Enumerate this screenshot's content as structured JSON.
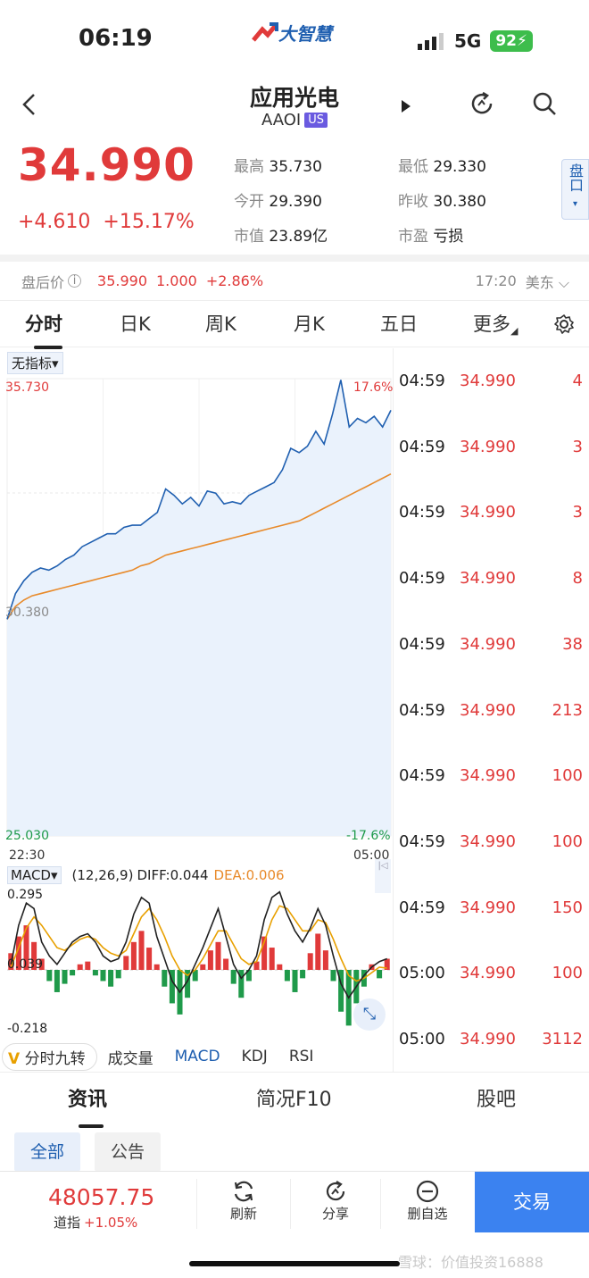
{
  "status_bar": {
    "time": "06:19",
    "app_logo": "大智慧",
    "network": "5G",
    "battery": "92"
  },
  "header": {
    "title": "应用光电",
    "ticker": "AAOI",
    "market_badge": "US"
  },
  "quote": {
    "price": "34.990",
    "change": "+4.610",
    "change_pct": "+15.17%",
    "high_label": "最高",
    "high": "35.730",
    "low_label": "最低",
    "low": "29.330",
    "open_label": "今开",
    "open": "29.390",
    "prev_close_label": "昨收",
    "prev_close": "30.380",
    "mcap_label": "市值",
    "mcap": "23.89亿",
    "pe_label": "市盈",
    "pe": "亏损",
    "side_tab": "盘口"
  },
  "after_hours": {
    "label": "盘后价",
    "price": "35.990",
    "change": "1.000",
    "change_pct": "+2.86%",
    "time": "17:20",
    "zone": "美东"
  },
  "chart_tabs": [
    "分时",
    "日K",
    "周K",
    "月K",
    "五日",
    "更多"
  ],
  "indicator_select": "无指标",
  "chart_data": {
    "type": "line",
    "x_start_label": "22:30",
    "x_end_label": "05:00",
    "y_max_label": "35.730",
    "y_mid_label": "30.380",
    "y_min_label": "25.030",
    "pct_max_label": "17.6%",
    "pct_min_label": "-17.6%",
    "ylim": [
      25.03,
      35.73
    ],
    "series": [
      {
        "name": "price",
        "color": "#1f5fb0",
        "values": [
          30.1,
          30.7,
          31.0,
          31.2,
          31.3,
          31.25,
          31.35,
          31.5,
          31.6,
          31.8,
          31.9,
          32.0,
          32.1,
          32.1,
          32.25,
          32.3,
          32.3,
          32.45,
          32.6,
          33.15,
          33.0,
          32.8,
          32.95,
          32.75,
          33.1,
          33.05,
          32.8,
          32.85,
          32.8,
          33.0,
          33.1,
          33.2,
          33.3,
          33.6,
          34.1,
          34.0,
          34.15,
          34.5,
          34.2,
          34.9,
          35.7,
          34.6,
          34.8,
          34.7,
          34.85,
          34.6,
          34.99
        ]
      },
      {
        "name": "avg",
        "color": "#e88a2a",
        "values": [
          30.1,
          30.4,
          30.55,
          30.65,
          30.7,
          30.75,
          30.8,
          30.85,
          30.9,
          30.95,
          31.0,
          31.05,
          31.1,
          31.15,
          31.2,
          31.25,
          31.35,
          31.4,
          31.5,
          31.6,
          31.65,
          31.7,
          31.75,
          31.8,
          31.85,
          31.9,
          31.95,
          32.0,
          32.05,
          32.1,
          32.15,
          32.2,
          32.25,
          32.3,
          32.35,
          32.4,
          32.5,
          32.6,
          32.7,
          32.8,
          32.9,
          33.0,
          33.1,
          33.2,
          33.3,
          33.4,
          33.5
        ]
      }
    ]
  },
  "macd": {
    "name": "MACD",
    "params": "(12,26,9)",
    "diff_label": "DIFF:0.044",
    "dea_label": "DEA:0.006",
    "y_max": "0.295",
    "y_zero": "0.039",
    "y_min": "-0.218",
    "bars": [
      0.06,
      0.12,
      0.16,
      0.1,
      0.04,
      -0.04,
      -0.08,
      -0.05,
      -0.02,
      0.02,
      0.03,
      -0.02,
      -0.04,
      -0.06,
      -0.03,
      0.05,
      0.1,
      0.14,
      0.08,
      0.02,
      -0.06,
      -0.12,
      -0.16,
      -0.1,
      -0.04,
      0.02,
      0.07,
      0.1,
      0.04,
      -0.05,
      -0.1,
      -0.04,
      0.03,
      0.12,
      0.08,
      0.02,
      -0.04,
      -0.08,
      -0.03,
      0.06,
      0.13,
      0.07,
      -0.04,
      -0.15,
      -0.2,
      -0.12,
      -0.06,
      0.02,
      -0.03,
      0.04
    ],
    "diff": [
      0.02,
      0.16,
      0.24,
      0.22,
      0.1,
      0.05,
      0.02,
      0.06,
      0.1,
      0.12,
      0.13,
      0.1,
      0.05,
      0.03,
      0.04,
      0.1,
      0.2,
      0.26,
      0.24,
      0.12,
      0.04,
      -0.04,
      -0.08,
      -0.04,
      0.02,
      0.08,
      0.15,
      0.22,
      0.12,
      0.02,
      -0.03,
      0.0,
      0.05,
      0.18,
      0.26,
      0.28,
      0.2,
      0.14,
      0.1,
      0.15,
      0.22,
      0.16,
      0.05,
      -0.05,
      -0.1,
      -0.06,
      -0.02,
      0.01,
      0.03,
      0.04
    ],
    "dea": [
      0.01,
      0.08,
      0.15,
      0.19,
      0.16,
      0.12,
      0.08,
      0.07,
      0.09,
      0.11,
      0.12,
      0.11,
      0.08,
      0.06,
      0.05,
      0.07,
      0.13,
      0.19,
      0.22,
      0.18,
      0.12,
      0.05,
      0.0,
      -0.02,
      0.0,
      0.04,
      0.09,
      0.14,
      0.14,
      0.09,
      0.04,
      0.02,
      0.03,
      0.1,
      0.18,
      0.23,
      0.22,
      0.18,
      0.14,
      0.14,
      0.18,
      0.17,
      0.11,
      0.04,
      -0.02,
      -0.04,
      -0.03,
      -0.01,
      0.01,
      0.006
    ]
  },
  "indicator_tabs": [
    "分时九转",
    "成交量",
    "MACD",
    "KDJ",
    "RSI"
  ],
  "active_indicator": "MACD",
  "trades": [
    {
      "time": "04:59",
      "price": "34.990",
      "vol": "4"
    },
    {
      "time": "04:59",
      "price": "34.990",
      "vol": "3"
    },
    {
      "time": "04:59",
      "price": "34.990",
      "vol": "3"
    },
    {
      "time": "04:59",
      "price": "34.990",
      "vol": "8"
    },
    {
      "time": "04:59",
      "price": "34.990",
      "vol": "38"
    },
    {
      "time": "04:59",
      "price": "34.990",
      "vol": "213"
    },
    {
      "time": "04:59",
      "price": "34.990",
      "vol": "100"
    },
    {
      "time": "04:59",
      "price": "34.990",
      "vol": "100"
    },
    {
      "time": "04:59",
      "price": "34.990",
      "vol": "150"
    },
    {
      "time": "05:00",
      "price": "34.990",
      "vol": "100"
    },
    {
      "time": "05:00",
      "price": "34.990",
      "vol": "3112"
    }
  ],
  "section_tabs": [
    "资讯",
    "简况F10",
    "股吧"
  ],
  "filter_tabs": [
    "全部",
    "公告"
  ],
  "bottom_bar": {
    "index_value": "48057.75",
    "index_name": "道指",
    "index_change": "+1.05%",
    "refresh": "刷新",
    "share": "分享",
    "remove_watch": "删自选",
    "trade": "交易"
  },
  "watermark": "雪球：价值投资16888",
  "colors": {
    "up": "#e03a3a",
    "down": "#1f9a4a",
    "price_line": "#1f5fb0",
    "avg_line": "#e88a2a",
    "trade_btn": "#3b82f0"
  }
}
